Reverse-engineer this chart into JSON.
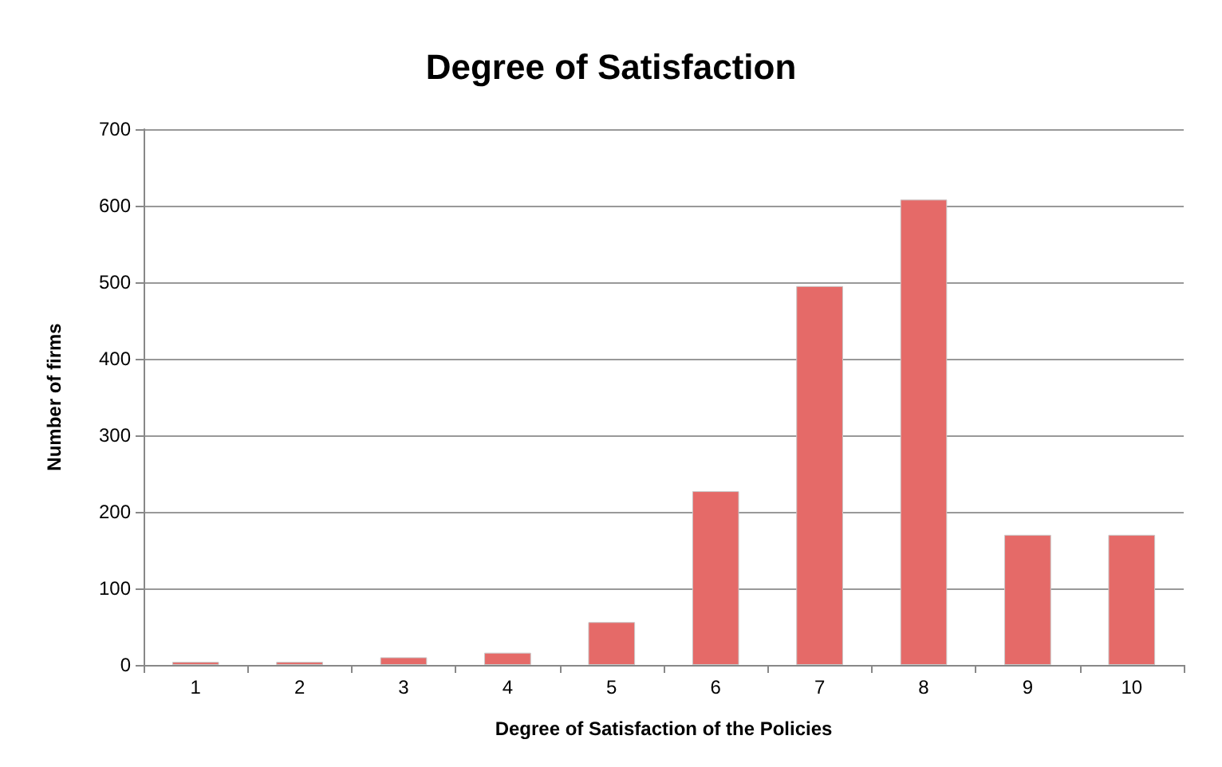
{
  "chart_data": {
    "type": "bar",
    "title": "Degree of Satisfaction",
    "xlabel": "Degree of Satisfaction of the Policies",
    "ylabel": "Number of firms",
    "categories": [
      "1",
      "2",
      "3",
      "4",
      "5",
      "6",
      "7",
      "8",
      "9",
      "10"
    ],
    "values": [
      4,
      4,
      10,
      16,
      56,
      227,
      495,
      608,
      170,
      170
    ],
    "color": "#e56a68",
    "ylim": [
      0,
      700
    ],
    "yticks": [
      0,
      100,
      200,
      300,
      400,
      500,
      600,
      700
    ],
    "grid": "y"
  }
}
